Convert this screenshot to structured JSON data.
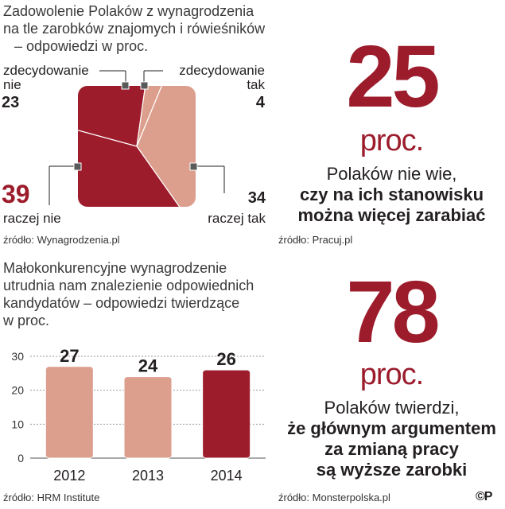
{
  "left_top": {
    "title_lines": [
      "Zadowolenie Polaków z wynagrodzenia",
      "na tle zarobków znajomych i rówieśników",
      "– odpowiedzi w proc."
    ],
    "source": "źródło: Wynagrodzenia.pl"
  },
  "left_bottom": {
    "title_lines": [
      "Małokonkurencyjne wynagrodzenie",
      "utrudnia nam znalezienie odpowiednich",
      "kandydatów – odpowiedzi twierdzące",
      "w proc."
    ],
    "source": "źródło: HRM Institute"
  },
  "right_top": {
    "number": "25",
    "unit": "proc.",
    "lines": [
      "Polaków nie wie,",
      "czy na ich stanowisku",
      "można więcej zarabiać"
    ],
    "source": "źródło: Pracuj.pl"
  },
  "right_bottom": {
    "number": "78",
    "unit": "proc.",
    "lines": [
      "Polaków twierdzi,",
      "że głównym argumentem",
      "za zmianą pracy",
      "są wyższe zarobki"
    ],
    "source": "źródło: Monsterpolska.pl"
  },
  "copyright": "©P",
  "chart_data": [
    {
      "type": "pie",
      "slices": [
        {
          "label_lines": [
            "zdecydowanie",
            "nie"
          ],
          "value": 23,
          "color": "#9c1c2c"
        },
        {
          "label_lines": [
            "zdecydowanie",
            "tak"
          ],
          "value": 4,
          "color": "#dd9f8d"
        },
        {
          "label_lines": [
            "raczej tak"
          ],
          "value": 34,
          "color": "#dd9f8d"
        },
        {
          "label_lines": [
            "raczej nie"
          ],
          "value": 39,
          "color": "#9c1c2c"
        }
      ],
      "value_labels": [
        "23",
        "4",
        "34",
        "39"
      ]
    },
    {
      "type": "bar",
      "categories": [
        "2012",
        "2013",
        "2014"
      ],
      "values": [
        27,
        24,
        26
      ],
      "value_labels": [
        "27",
        "24",
        "26"
      ],
      "colors": [
        "#dd9f8d",
        "#dd9f8d",
        "#9c1c2c"
      ],
      "yticks": [
        "0",
        "10",
        "20",
        "30"
      ],
      "ylim": [
        0,
        30
      ]
    }
  ]
}
